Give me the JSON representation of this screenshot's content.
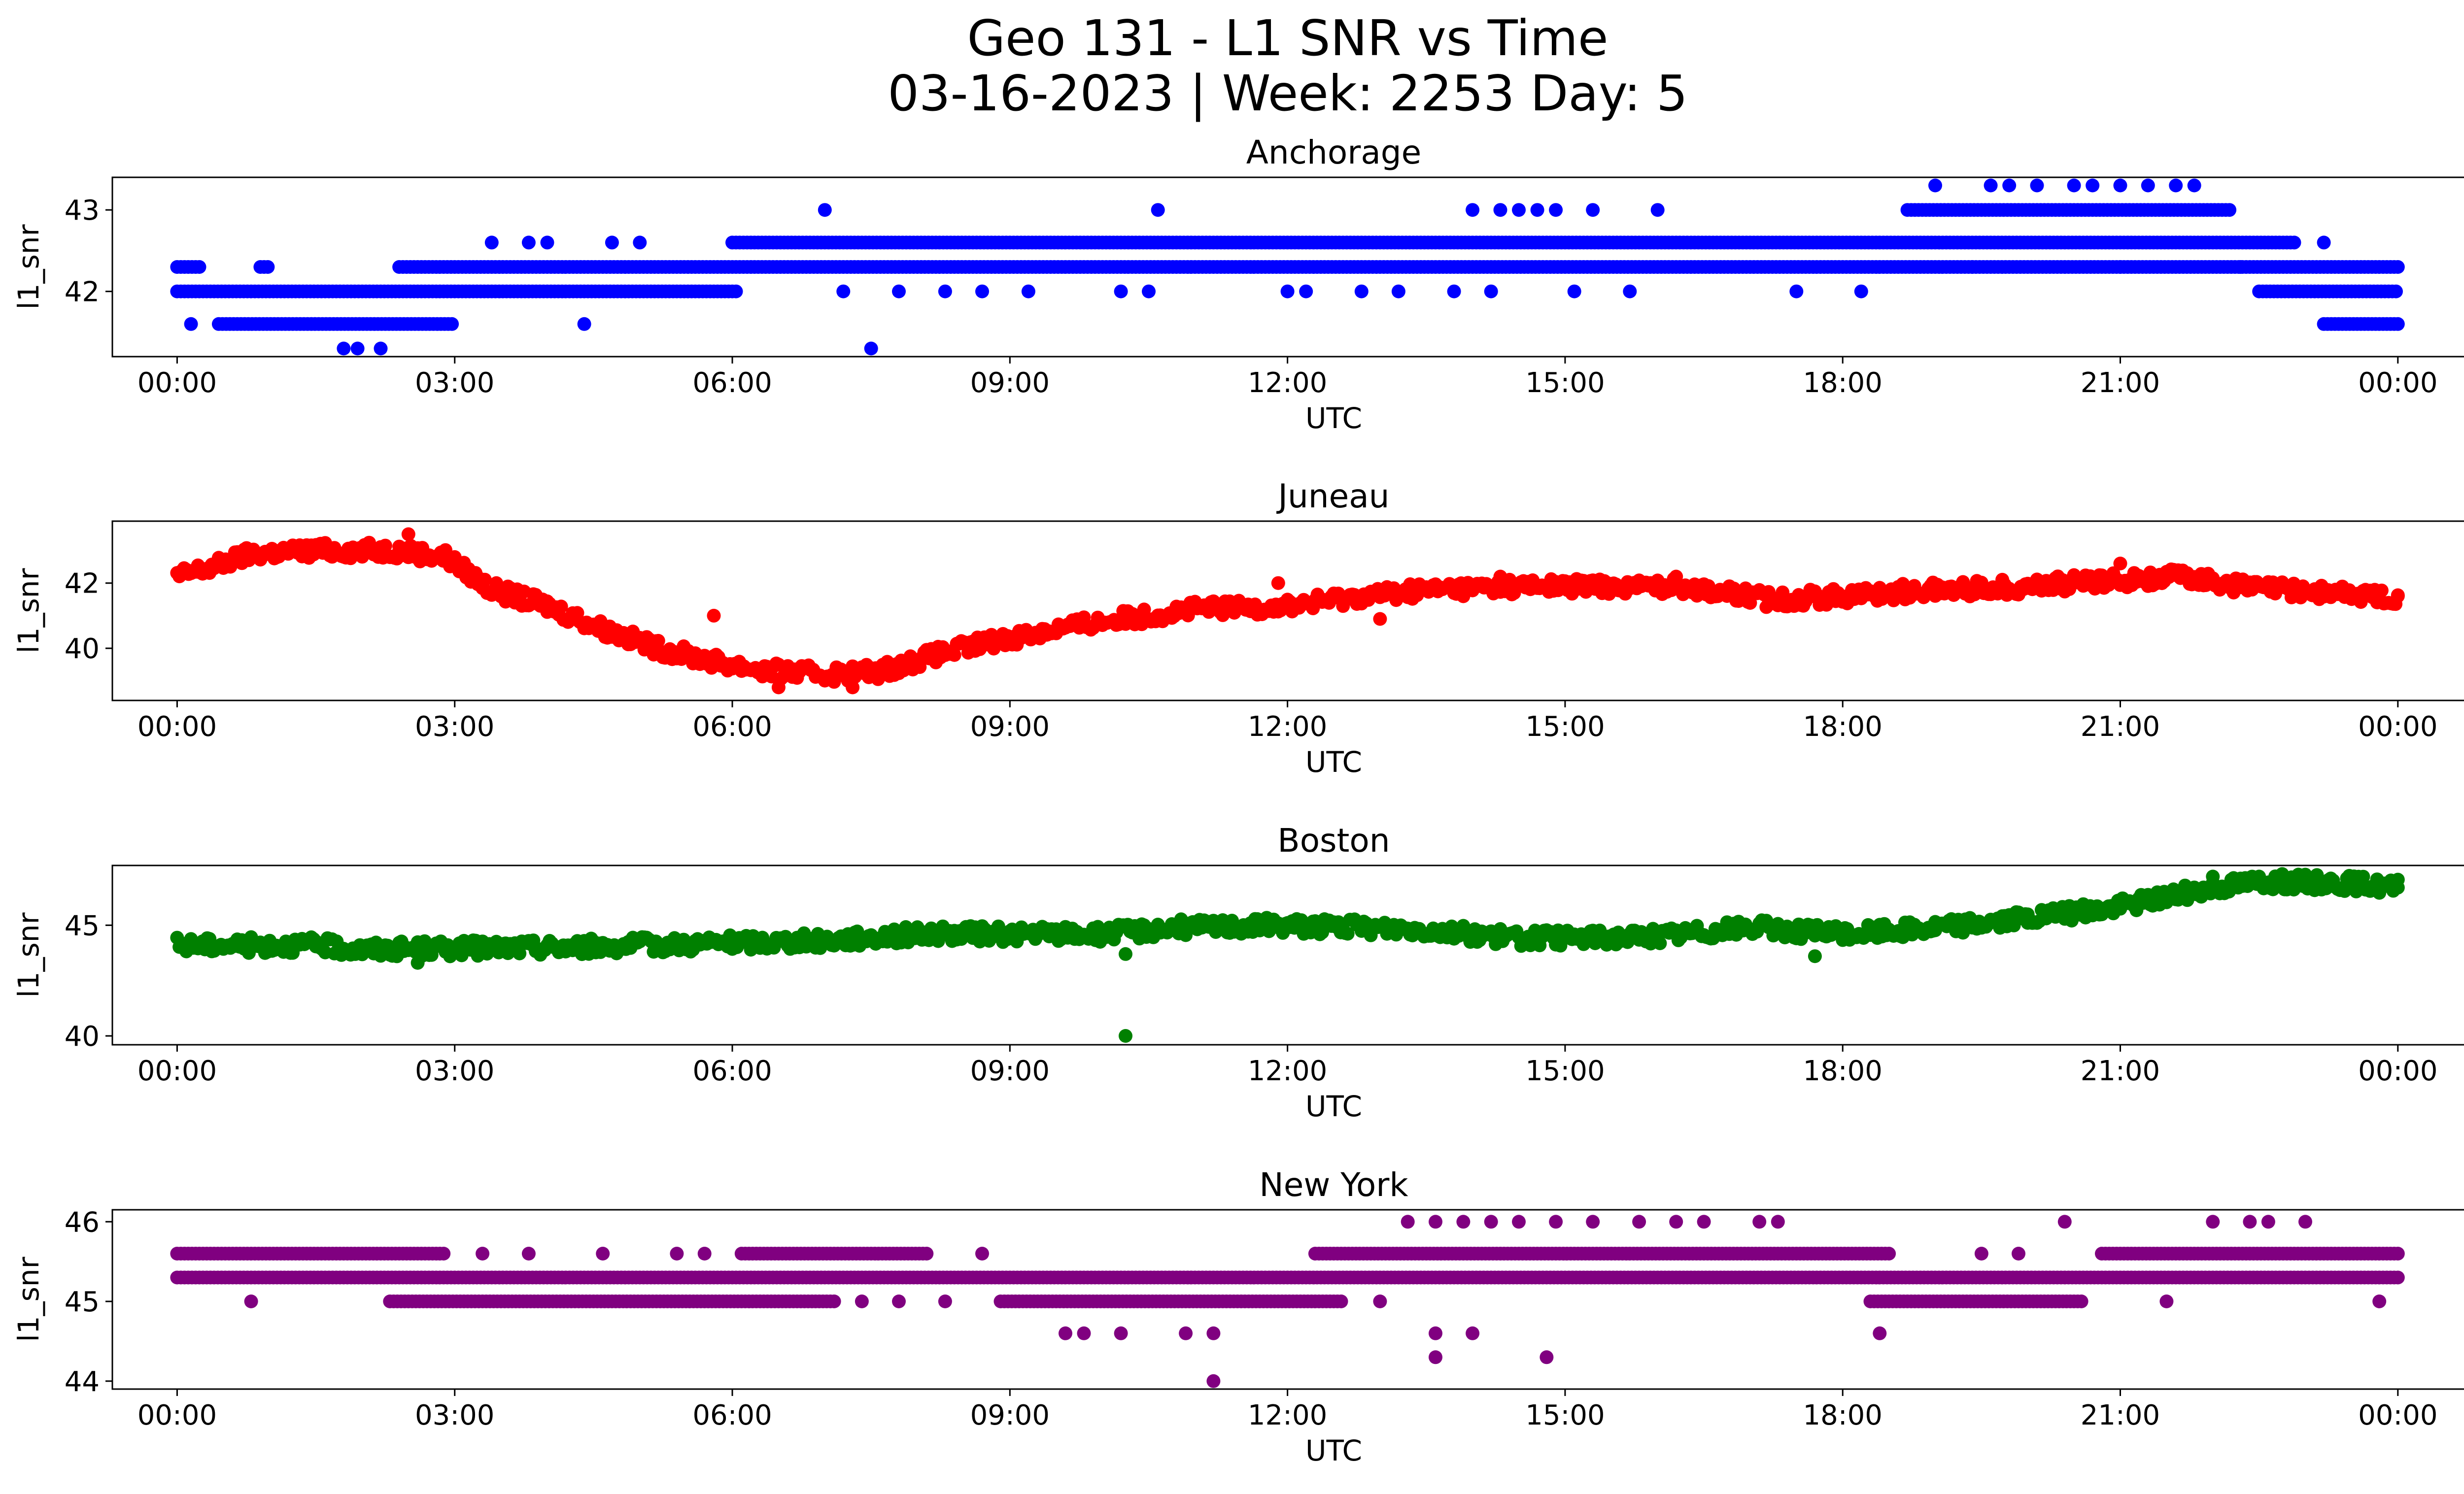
{
  "title_line1": "Geo 131 - L1 SNR vs Time",
  "title_line2": "03-16-2023 | Week: 2253 Day: 5",
  "chart_data": [
    {
      "type": "scatter",
      "title": "Anchorage",
      "xlabel": "UTC",
      "ylabel": "l1_snr",
      "color": "#0000ff",
      "x_ticks": [
        "00:00",
        "03:00",
        "06:00",
        "09:00",
        "12:00",
        "15:00",
        "18:00",
        "21:00",
        "00:00"
      ],
      "y_ticks": [
        42,
        43
      ],
      "xlim_hours": [
        -0.7,
        25.7
      ],
      "ylim": [
        41.2,
        43.4
      ],
      "bands": [
        {
          "from": 0.0,
          "to": 0.25,
          "y": 42.3
        },
        {
          "from": 0.9,
          "to": 1.0,
          "y": 42.3
        },
        {
          "from": 0.0,
          "to": 6.05,
          "y": 42.0
        },
        {
          "from": 2.4,
          "to": 24.0,
          "y": 42.3
        },
        {
          "from": 6.0,
          "to": 22.9,
          "y": 42.6
        },
        {
          "from": 18.7,
          "to": 22.2,
          "y": 43.0
        },
        {
          "from": 0.45,
          "to": 3.0,
          "y": 41.6
        },
        {
          "from": 23.2,
          "to": 24.0,
          "y": 41.6
        },
        {
          "from": 22.5,
          "to": 24.0,
          "y": 42.0
        }
      ],
      "points": [
        [
          0.15,
          41.6
        ],
        [
          1.8,
          41.3
        ],
        [
          1.95,
          41.3
        ],
        [
          2.2,
          41.3
        ],
        [
          3.4,
          42.6
        ],
        [
          3.8,
          42.6
        ],
        [
          4.0,
          42.6
        ],
        [
          4.7,
          42.6
        ],
        [
          5.0,
          42.6
        ],
        [
          4.4,
          41.6
        ],
        [
          7.0,
          43.0
        ],
        [
          7.5,
          41.3
        ],
        [
          7.2,
          42.0
        ],
        [
          7.8,
          42.0
        ],
        [
          8.3,
          42.0
        ],
        [
          8.7,
          42.0
        ],
        [
          9.2,
          42.0
        ],
        [
          10.2,
          42.0
        ],
        [
          10.5,
          42.0
        ],
        [
          10.6,
          43.0
        ],
        [
          12.0,
          42.0
        ],
        [
          12.2,
          42.0
        ],
        [
          12.8,
          42.0
        ],
        [
          13.2,
          42.0
        ],
        [
          13.8,
          42.0
        ],
        [
          14.0,
          43.0
        ],
        [
          14.3,
          43.0
        ],
        [
          14.5,
          43.0
        ],
        [
          14.7,
          43.0
        ],
        [
          14.9,
          43.0
        ],
        [
          15.3,
          43.0
        ],
        [
          16.0,
          43.0
        ],
        [
          14.2,
          42.0
        ],
        [
          15.1,
          42.0
        ],
        [
          15.7,
          42.0
        ],
        [
          17.5,
          42.0
        ],
        [
          18.2,
          42.0
        ],
        [
          19.0,
          43.3
        ],
        [
          19.6,
          43.3
        ],
        [
          19.8,
          43.3
        ],
        [
          20.1,
          43.3
        ],
        [
          20.5,
          43.3
        ],
        [
          20.7,
          43.3
        ],
        [
          21.0,
          43.3
        ],
        [
          21.3,
          43.3
        ],
        [
          21.6,
          43.3
        ],
        [
          21.8,
          43.3
        ],
        [
          19.4,
          42.3
        ],
        [
          21.0,
          42.3
        ],
        [
          22.3,
          42.3
        ],
        [
          23.2,
          42.6
        ]
      ]
    },
    {
      "type": "scatter",
      "title": "Juneau",
      "xlabel": "UTC",
      "ylabel": "l1_snr",
      "color": "#ff0000",
      "x_ticks": [
        "00:00",
        "03:00",
        "06:00",
        "09:00",
        "12:00",
        "15:00",
        "18:00",
        "21:00",
        "00:00"
      ],
      "y_ticks": [
        40,
        42
      ],
      "xlim_hours": [
        -0.7,
        25.7
      ],
      "ylim": [
        38.4,
        43.9
      ],
      "trend": [
        [
          0.0,
          42.2
        ],
        [
          0.4,
          42.5
        ],
        [
          0.8,
          42.9
        ],
        [
          1.5,
          43.0
        ],
        [
          2.4,
          43.0
        ],
        [
          2.9,
          42.8
        ],
        [
          3.4,
          41.8
        ],
        [
          4.0,
          41.3
        ],
        [
          4.6,
          40.6
        ],
        [
          5.2,
          40.0
        ],
        [
          5.8,
          39.6
        ],
        [
          6.4,
          39.3
        ],
        [
          7.0,
          39.2
        ],
        [
          7.6,
          39.3
        ],
        [
          8.2,
          39.8
        ],
        [
          8.8,
          40.2
        ],
        [
          9.5,
          40.6
        ],
        [
          10.2,
          40.9
        ],
        [
          11.0,
          41.2
        ],
        [
          12.0,
          41.3
        ],
        [
          12.8,
          41.6
        ],
        [
          13.5,
          41.8
        ],
        [
          14.5,
          41.9
        ],
        [
          15.5,
          41.9
        ],
        [
          16.3,
          41.9
        ],
        [
          17.2,
          41.5
        ],
        [
          18.0,
          41.6
        ],
        [
          19.0,
          41.8
        ],
        [
          20.0,
          41.9
        ],
        [
          21.0,
          42.1
        ],
        [
          21.7,
          42.2
        ],
        [
          22.3,
          41.9
        ],
        [
          23.2,
          41.7
        ],
        [
          24.0,
          41.6
        ]
      ],
      "points": [
        [
          2.5,
          43.5
        ],
        [
          5.8,
          41.0
        ],
        [
          6.5,
          38.8
        ],
        [
          7.3,
          38.8
        ],
        [
          11.9,
          42.0
        ],
        [
          13.0,
          40.9
        ],
        [
          14.3,
          42.2
        ],
        [
          16.2,
          42.2
        ],
        [
          21.0,
          42.6
        ]
      ]
    },
    {
      "type": "scatter",
      "title": "Boston",
      "xlabel": "UTC",
      "ylabel": "l1_snr",
      "color": "#008000",
      "x_ticks": [
        "00:00",
        "03:00",
        "06:00",
        "09:00",
        "12:00",
        "15:00",
        "18:00",
        "21:00",
        "00:00"
      ],
      "y_ticks": [
        40,
        45
      ],
      "xlim_hours": [
        -0.7,
        25.7
      ],
      "ylim": [
        39.6,
        47.7
      ],
      "trend": [
        [
          0.0,
          44.1
        ],
        [
          1.5,
          44.1
        ],
        [
          2.0,
          43.9
        ],
        [
          4.0,
          44.0
        ],
        [
          5.0,
          44.1
        ],
        [
          7.0,
          44.3
        ],
        [
          8.0,
          44.6
        ],
        [
          10.0,
          44.6
        ],
        [
          10.8,
          44.9
        ],
        [
          12.0,
          45.0
        ],
        [
          13.5,
          44.8
        ],
        [
          14.5,
          44.4
        ],
        [
          16.0,
          44.5
        ],
        [
          17.0,
          44.9
        ],
        [
          18.0,
          44.6
        ],
        [
          19.0,
          44.9
        ],
        [
          20.0,
          45.3
        ],
        [
          20.8,
          45.7
        ],
        [
          21.5,
          46.3
        ],
        [
          22.0,
          46.7
        ],
        [
          22.5,
          47.0
        ],
        [
          23.5,
          46.9
        ],
        [
          24.0,
          46.7
        ]
      ],
      "points": [
        [
          10.25,
          40.0
        ],
        [
          10.25,
          43.7
        ],
        [
          2.6,
          43.3
        ],
        [
          17.7,
          43.6
        ],
        [
          22.0,
          47.2
        ],
        [
          23.0,
          47.2
        ]
      ]
    },
    {
      "type": "scatter",
      "title": "New York",
      "xlabel": "UTC",
      "ylabel": "l1_snr",
      "color": "#800080",
      "x_ticks": [
        "00:00",
        "03:00",
        "06:00",
        "09:00",
        "12:00",
        "15:00",
        "18:00",
        "21:00",
        "00:00"
      ],
      "y_ticks": [
        44,
        45,
        46
      ],
      "xlim_hours": [
        -0.7,
        25.7
      ],
      "ylim": [
        43.9,
        46.15
      ],
      "bands": [
        {
          "from": 0.0,
          "to": 24.0,
          "y": 45.3
        },
        {
          "from": 0.0,
          "to": 2.9,
          "y": 45.6
        },
        {
          "from": 6.1,
          "to": 8.1,
          "y": 45.6
        },
        {
          "from": 12.3,
          "to": 18.5,
          "y": 45.6
        },
        {
          "from": 20.8,
          "to": 24.0,
          "y": 45.6
        },
        {
          "from": 2.3,
          "to": 7.1,
          "y": 45.0
        },
        {
          "from": 8.9,
          "to": 12.6,
          "y": 45.0
        },
        {
          "from": 18.3,
          "to": 20.6,
          "y": 45.0
        }
      ],
      "points": [
        [
          0.8,
          45.0
        ],
        [
          3.3,
          45.6
        ],
        [
          3.8,
          45.6
        ],
        [
          4.6,
          45.6
        ],
        [
          5.4,
          45.6
        ],
        [
          5.7,
          45.6
        ],
        [
          8.7,
          45.6
        ],
        [
          7.4,
          45.0
        ],
        [
          7.8,
          45.0
        ],
        [
          8.3,
          45.0
        ],
        [
          13.0,
          45.0
        ],
        [
          21.5,
          45.0
        ],
        [
          23.8,
          45.0
        ],
        [
          9.6,
          44.6
        ],
        [
          9.8,
          44.6
        ],
        [
          10.2,
          44.6
        ],
        [
          10.9,
          44.6
        ],
        [
          11.2,
          44.6
        ],
        [
          13.6,
          44.6
        ],
        [
          14.0,
          44.6
        ],
        [
          18.4,
          44.6
        ],
        [
          11.2,
          44.0
        ],
        [
          13.6,
          44.3
        ],
        [
          14.8,
          44.3
        ],
        [
          13.3,
          46.0
        ],
        [
          13.6,
          46.0
        ],
        [
          13.9,
          46.0
        ],
        [
          14.2,
          46.0
        ],
        [
          14.5,
          46.0
        ],
        [
          14.9,
          46.0
        ],
        [
          15.3,
          46.0
        ],
        [
          15.8,
          46.0
        ],
        [
          16.2,
          46.0
        ],
        [
          16.5,
          46.0
        ],
        [
          17.1,
          46.0
        ],
        [
          17.3,
          46.0
        ],
        [
          20.4,
          46.0
        ],
        [
          22.0,
          46.0
        ],
        [
          22.4,
          46.0
        ],
        [
          22.6,
          46.0
        ],
        [
          23.0,
          46.0
        ],
        [
          19.5,
          45.6
        ],
        [
          19.9,
          45.6
        ]
      ]
    }
  ]
}
